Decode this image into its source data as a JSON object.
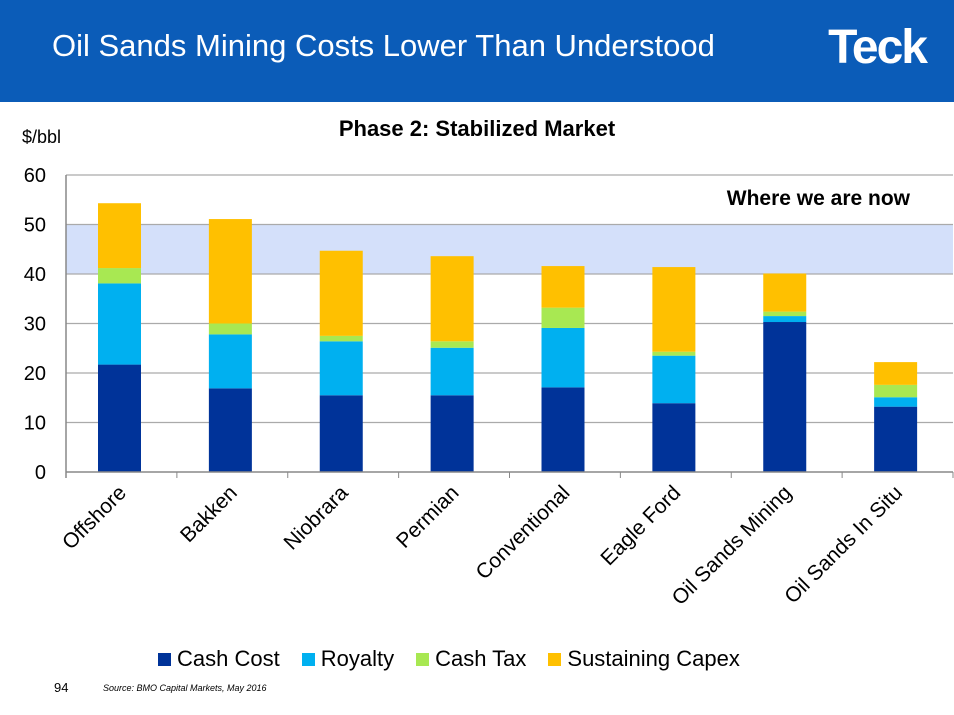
{
  "header": {
    "title": "Oil Sands Mining Costs Lower Than Understood",
    "logo": "Teck",
    "color": "#0b5cb8"
  },
  "footer": {
    "page": "94",
    "source": "Source: BMO Capital Markets, May 2016"
  },
  "chart_data": {
    "type": "bar",
    "stacked": true,
    "title": "Phase 2: Stabilized Market",
    "ylabel": "$/bbl",
    "ylim": [
      0,
      60
    ],
    "yticks": [
      0,
      10,
      20,
      30,
      40,
      50,
      60
    ],
    "grid": true,
    "band": {
      "range": [
        40,
        50
      ],
      "label": "Where we are now",
      "color": "#d4e0fa"
    },
    "categories": [
      "Offshore",
      "Bakken",
      "Niobrara",
      "Permian",
      "Conventional",
      "Eagle Ford",
      "Oil Sands Mining",
      "Oil Sands In Situ"
    ],
    "series": [
      {
        "name": "Cash Cost",
        "color": "#003399",
        "values": [
          21.7,
          16.9,
          15.5,
          15.5,
          17.1,
          13.9,
          30.3,
          13.2
        ]
      },
      {
        "name": "Royalty",
        "color": "#00b0f0",
        "values": [
          16.4,
          10.9,
          10.9,
          9.6,
          12.0,
          9.6,
          1.2,
          1.9
        ]
      },
      {
        "name": "Cash Tax",
        "color": "#a8e852",
        "values": [
          3.1,
          2.2,
          1.1,
          1.3,
          4.1,
          0.8,
          0.9,
          2.5
        ]
      },
      {
        "name": "Sustaining Capex",
        "color": "#ffc000",
        "values": [
          13.1,
          21.1,
          17.2,
          17.2,
          8.4,
          17.1,
          7.7,
          4.6
        ]
      }
    ],
    "legend": "bottom"
  }
}
